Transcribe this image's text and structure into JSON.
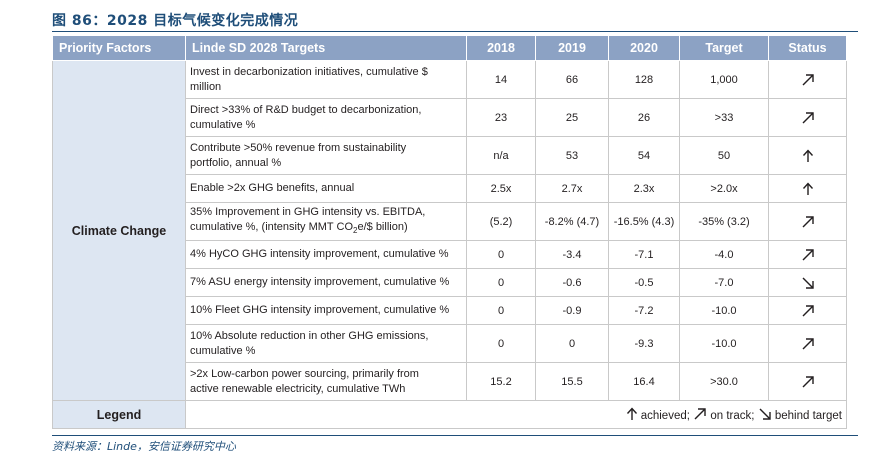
{
  "figure": {
    "title": "图 86：2028 目标气候变化完成情况",
    "source": "资料来源：Linde，安信证券研究中心"
  },
  "table": {
    "headers": {
      "factor": "Priority Factors",
      "target": "Linde SD 2028 Targets",
      "y2018": "2018",
      "y2019": "2019",
      "y2020": "2020",
      "goal": "Target",
      "status": "Status"
    },
    "factor_label": "Climate Change",
    "rows": [
      {
        "t1": "Invest in decarbonization initiatives, cumulative $",
        "t2": "million",
        "y2018": "14",
        "y2019": "66",
        "y2020": "128",
        "goal": "1,000",
        "status": "on-track"
      },
      {
        "t1": "Direct >33% of R&D budget to decarbonization,",
        "t2": "cumulative %",
        "y2018": "23",
        "y2019": "25",
        "y2020": "26",
        "goal": ">33",
        "status": "on-track"
      },
      {
        "t1": "Contribute >50% revenue from sustainability",
        "t2": "portfolio, annual %",
        "y2018": "n/a",
        "y2019": "53",
        "y2020": "54",
        "goal": "50",
        "status": "achieved"
      },
      {
        "t1": "Enable >2x GHG benefits, annual",
        "t2": "",
        "y2018": "2.5x",
        "y2019": "2.7x",
        "y2020": "2.3x",
        "goal": ">2.0x",
        "status": "achieved"
      },
      {
        "t1": "35% Improvement in GHG intensity vs. EBITDA,",
        "t2": "cumulative %, (intensity MMT CO",
        "t2sub": "2",
        "t2end": "e/$ billion)",
        "y2018": "(5.2)",
        "y2019": "-8.2% (4.7)",
        "y2020": "-16.5% (4.3)",
        "goal": "-35% (3.2)",
        "status": "on-track"
      },
      {
        "t1": "4% HyCO GHG intensity improvement, cumulative %",
        "t2": "",
        "y2018": "0",
        "y2019": "-3.4",
        "y2020": "-7.1",
        "goal": "-4.0",
        "status": "on-track"
      },
      {
        "t1": "7% ASU energy intensity improvement, cumulative %",
        "t2": "",
        "y2018": "0",
        "y2019": "-0.6",
        "y2020": "-0.5",
        "goal": "-7.0",
        "status": "behind"
      },
      {
        "t1": "10% Fleet GHG intensity improvement, cumulative %",
        "t2": "",
        "y2018": "0",
        "y2019": "-0.9",
        "y2020": "-7.2",
        "goal": "-10.0",
        "status": "on-track"
      },
      {
        "t1": "10% Absolute reduction in other GHG emissions,",
        "t2": "cumulative %",
        "y2018": "0",
        "y2019": "0",
        "y2020": "-9.3",
        "goal": "-10.0",
        "status": "on-track"
      },
      {
        "t1": ">2x Low-carbon power sourcing, primarily from",
        "t2": "active renewable electricity, cumulative TWh",
        "y2018": "15.2",
        "y2019": "15.5",
        "y2020": "16.4",
        "goal": ">30.0",
        "status": "on-track"
      }
    ],
    "legend": {
      "label": "Legend",
      "achieved": "achieved;",
      "on_track": "on track;",
      "behind": "behind target"
    }
  },
  "colors": {
    "header_bg": "#8ca2c4",
    "factor_bg": "#dde6f2",
    "title_blue": "#1f4e79"
  }
}
